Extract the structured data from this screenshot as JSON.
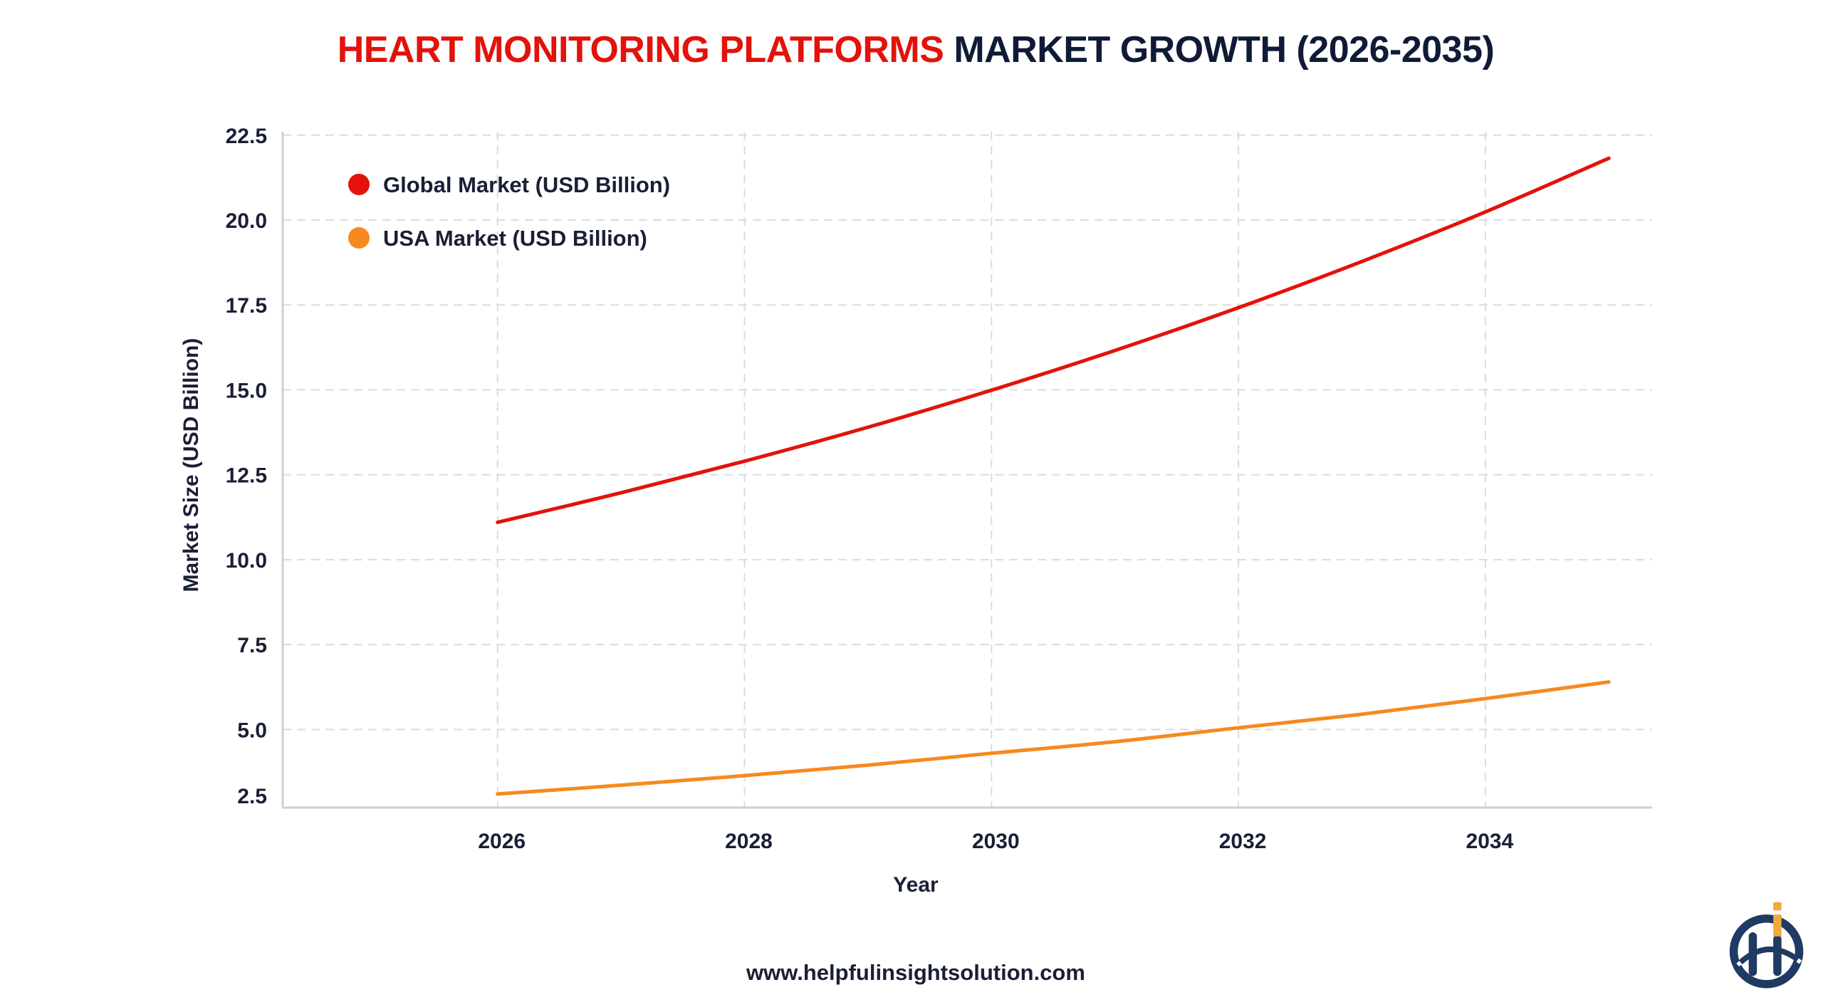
{
  "title": {
    "highlight": "HEART MONITORING PLATFORMS",
    "rest": "MARKET GROWTH (2026-2035)"
  },
  "footer": {
    "url": "www.helpfulinsightsolution.com"
  },
  "logo": {
    "icon": "helpful-insight-logo",
    "colors": [
      "#1f3a63",
      "#f0a93a"
    ]
  },
  "chart_data": {
    "type": "line",
    "title": "HEART MONITORING PLATFORMS MARKET GROWTH (2026-2035)",
    "xlabel": "Year",
    "ylabel": "Market Size (USD Billion)",
    "x": [
      2026,
      2027,
      2028,
      2029,
      2030,
      2031,
      2032,
      2033,
      2034,
      2035
    ],
    "xticks": [
      "2026",
      "2028",
      "2030",
      "2032",
      "2034"
    ],
    "yticks": [
      "2.5",
      "5.0",
      "7.5",
      "10.0",
      "12.5",
      "15.0",
      "17.5",
      "20.0",
      "22.5"
    ],
    "xlim": [
      2024.26,
      2035.35
    ],
    "ylim": [
      2.7,
      22.6
    ],
    "grid": true,
    "legend_position": "top-left",
    "series": [
      {
        "name": "Global Market (USD Billion)",
        "color": "#e3120b",
        "values": [
          11.1,
          11.97,
          12.9,
          13.9,
          14.99,
          16.16,
          17.42,
          18.78,
          20.24,
          21.82
        ]
      },
      {
        "name": "USA Market (USD Billion)",
        "color": "#f7891f",
        "values": [
          3.1,
          3.36,
          3.64,
          3.95,
          4.3,
          4.64,
          5.05,
          5.45,
          5.91,
          6.4
        ]
      }
    ]
  }
}
